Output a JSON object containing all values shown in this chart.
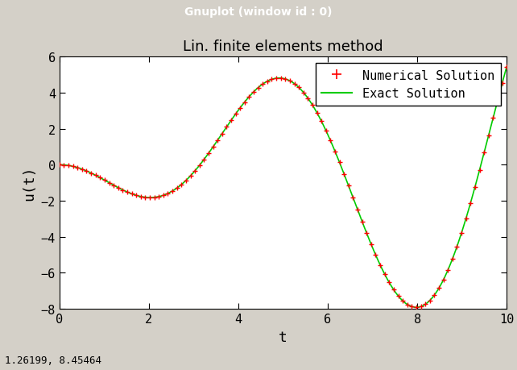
{
  "title": "Lin. finite elements method",
  "xlabel": "t",
  "ylabel": "u(t)",
  "xlim": [
    0,
    10
  ],
  "ylim": [
    -8,
    6
  ],
  "xticks": [
    0,
    2,
    4,
    6,
    8,
    10
  ],
  "yticks": [
    -8,
    -6,
    -4,
    -2,
    0,
    2,
    4,
    6
  ],
  "exact_color": "#00cc00",
  "numerical_color": "#ff0000",
  "background_color": "#ffffff",
  "window_bg": "#d4d0c8",
  "titlebar_bg": "#2a2a6e",
  "titlebar_text": "Gnuplot (window id : 0)",
  "titlebar_fg": "#ffffff",
  "statusbar_text": "1.26199, 8.45464",
  "n_exact": 500,
  "n_numerical": 100,
  "legend_numerical": "Numerical Solution",
  "legend_exact": "Exact Solution",
  "title_fontsize": 13,
  "label_fontsize": 13,
  "tick_fontsize": 11,
  "legend_fontsize": 11,
  "formula_phase": 1.5
}
